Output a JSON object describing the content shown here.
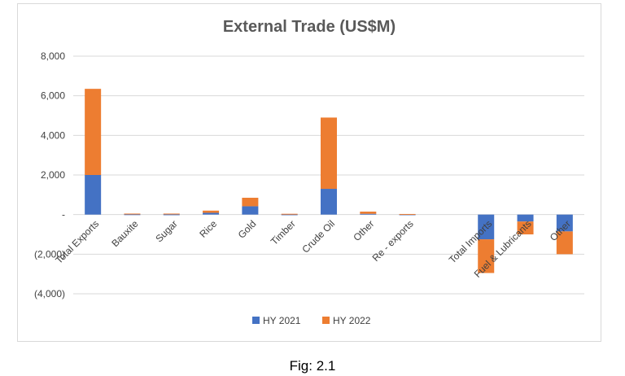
{
  "chart_data": {
    "type": "bar",
    "stacked": true,
    "title": "External Trade (US$M)",
    "categories": [
      "Total Exports",
      "Bauxite",
      "Sugar",
      "Rice",
      "Gold",
      "Timber",
      "Crude Oil",
      "Other",
      "Re - exports",
      "",
      "Total Imports",
      "Fuel & Lubricants",
      "Other"
    ],
    "series": [
      {
        "name": "HY 2021",
        "color": "#4472c4",
        "values": [
          2000,
          15,
          10,
          90,
          420,
          10,
          1300,
          40,
          10,
          0,
          -1250,
          -350,
          -850
        ]
      },
      {
        "name": "HY 2022",
        "color": "#ed7d31",
        "values": [
          4350,
          35,
          40,
          110,
          430,
          30,
          3600,
          110,
          20,
          0,
          -1700,
          -650,
          -1150
        ]
      }
    ],
    "y_ticks": [
      "8,000",
      "6,000",
      "4,000",
      "2,000",
      "-",
      "(2,000)",
      "(4,000)"
    ],
    "ylim": [
      -4000,
      8000
    ],
    "grid": true,
    "legend_position": "bottom"
  },
  "caption": "Fig: 2.1"
}
